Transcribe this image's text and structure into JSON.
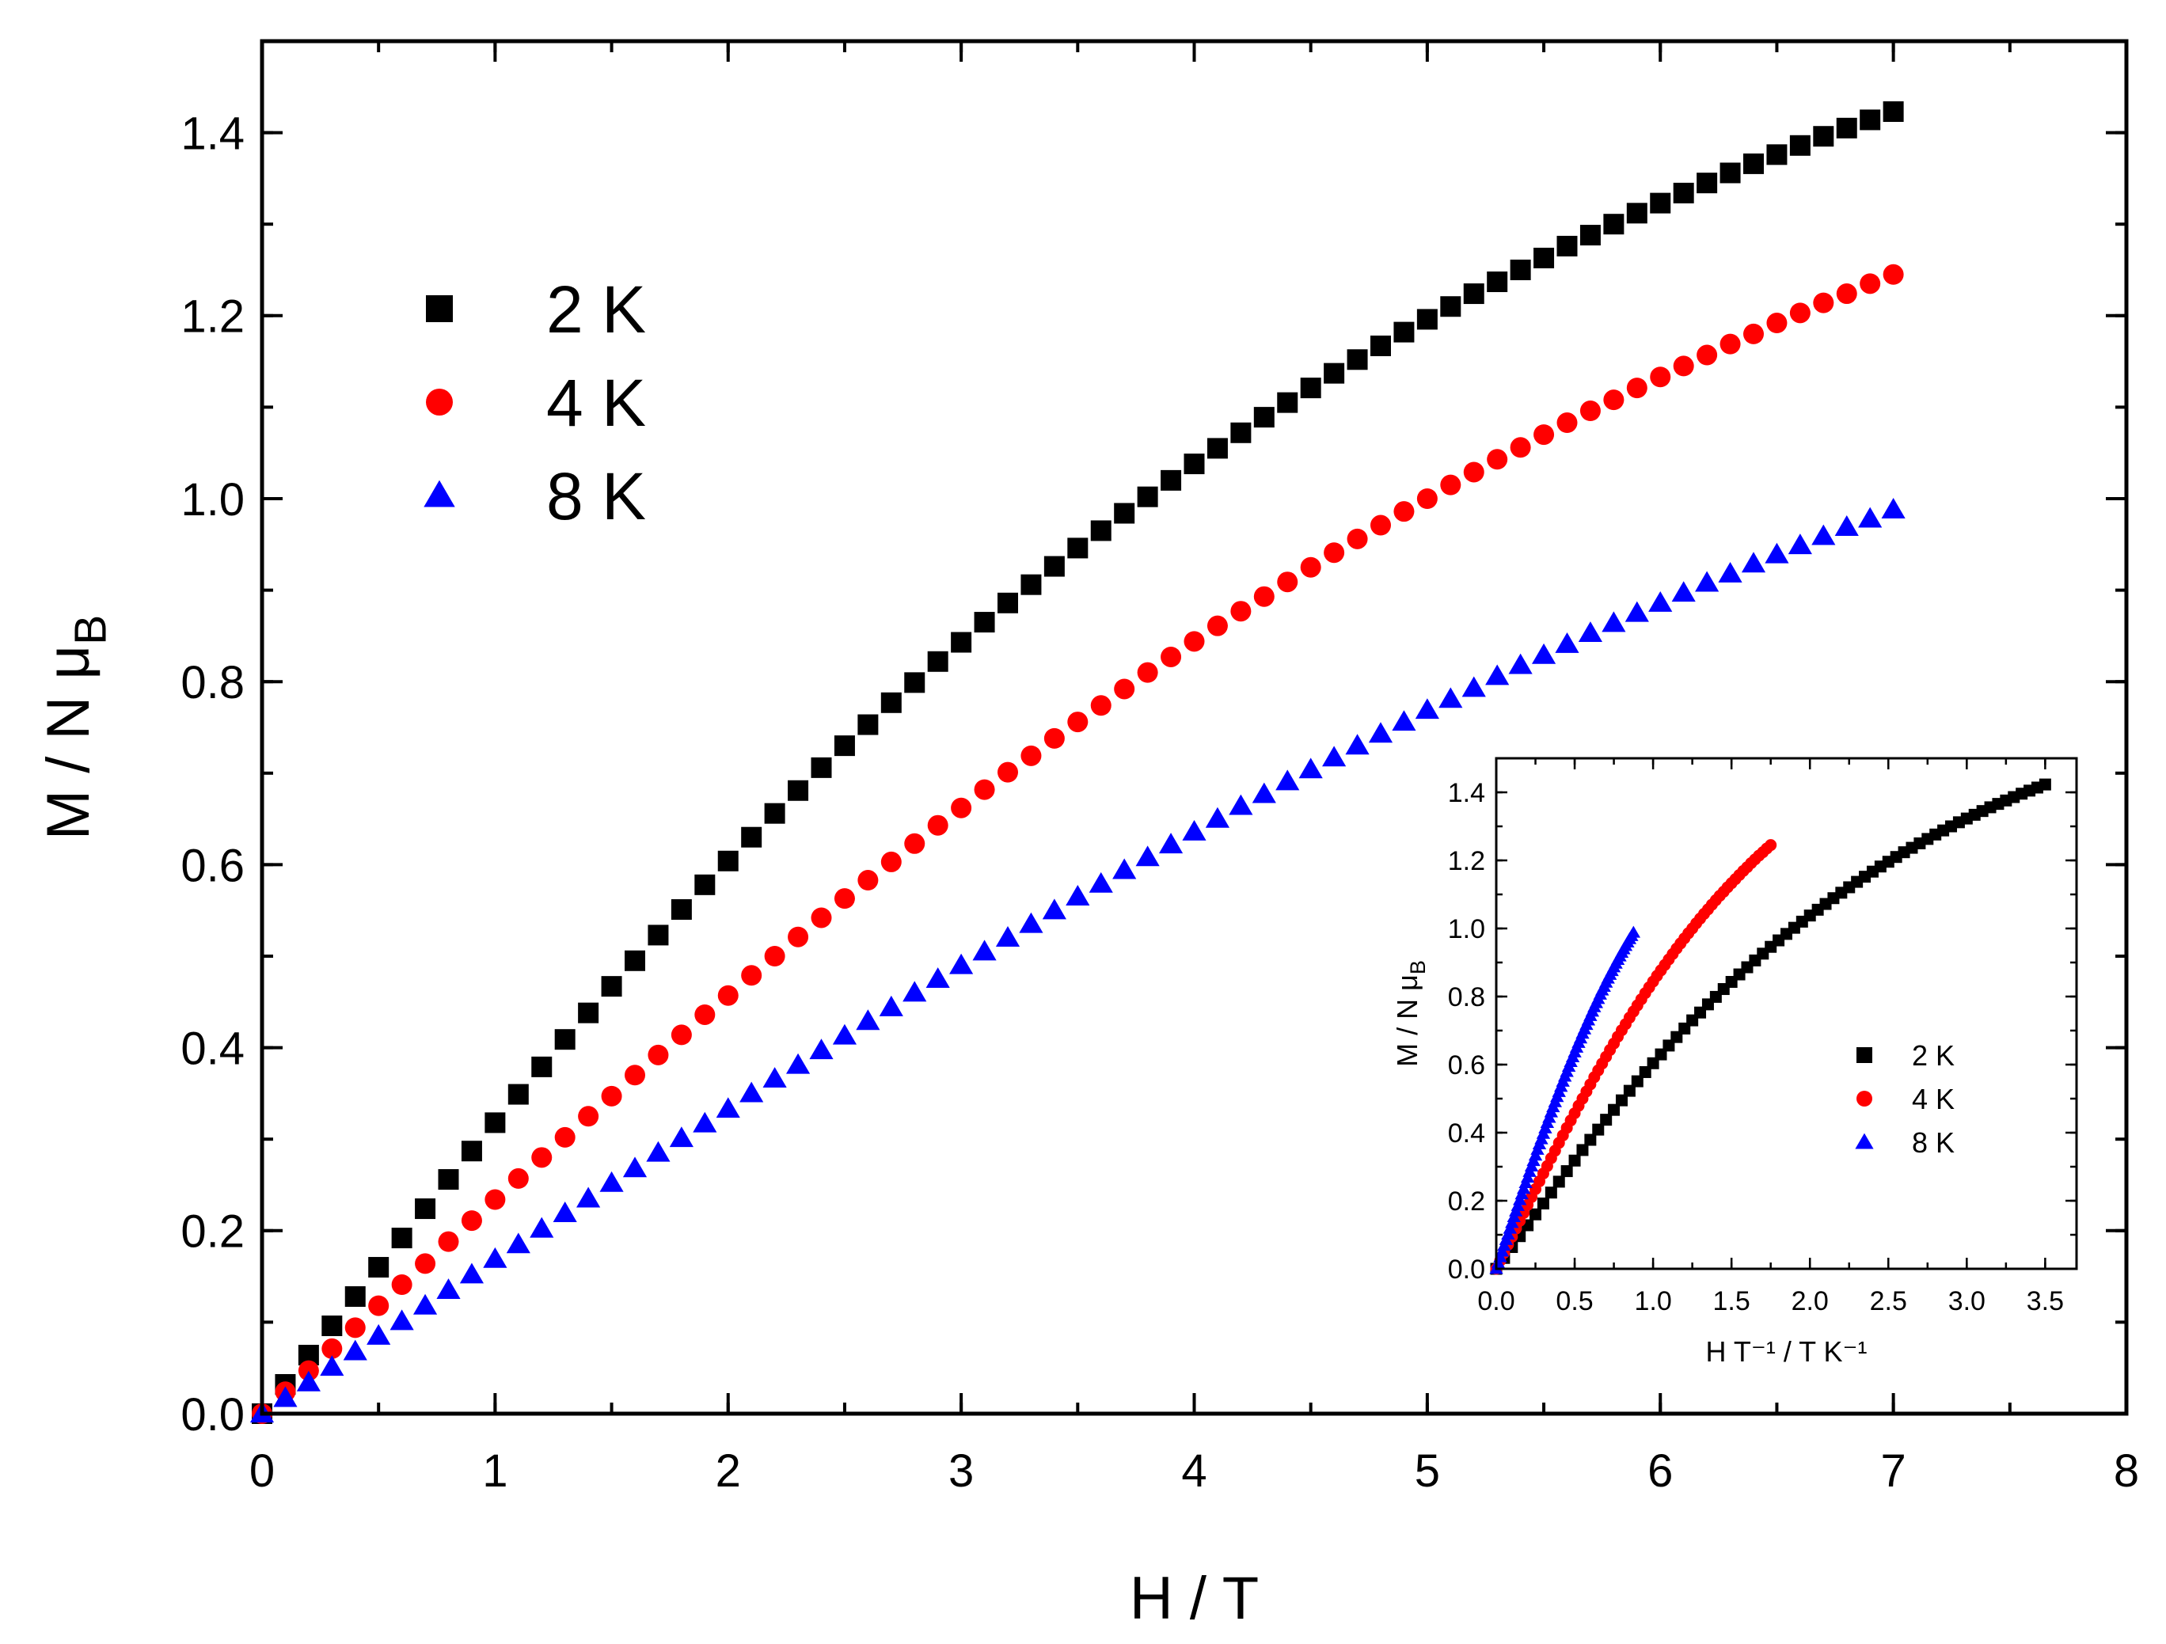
{
  "chart_data": [
    {
      "id": "main",
      "type": "scatter",
      "title": "",
      "xlabel": "H / T",
      "ylabel": "M / N μ",
      "ylabel_sub": "B",
      "xlim": [
        0,
        8
      ],
      "ylim": [
        0,
        1.5
      ],
      "xticks": [
        "0",
        "1",
        "2",
        "3",
        "4",
        "5",
        "6",
        "7",
        "8"
      ],
      "yticks": [
        "0.0",
        "0.2",
        "0.4",
        "0.6",
        "0.8",
        "1.0",
        "1.2",
        "1.4"
      ],
      "grid": false,
      "legend_position": "top-left",
      "series": [
        {
          "name": "2 K",
          "marker": "square",
          "color": "#000000",
          "x": [
            0,
            0.1,
            0.2,
            0.3,
            0.4,
            0.5,
            0.6,
            0.7,
            0.8,
            0.9,
            1.0,
            1.1,
            1.2,
            1.3,
            1.4,
            1.5,
            1.6,
            1.7,
            1.8,
            1.9,
            2.0,
            2.1,
            2.2,
            2.3,
            2.4,
            2.5,
            2.6,
            2.7,
            2.8,
            2.9,
            3.0,
            3.1,
            3.2,
            3.3,
            3.4,
            3.5,
            3.6,
            3.7,
            3.8,
            3.9,
            4.0,
            4.1,
            4.2,
            4.3,
            4.4,
            4.5,
            4.6,
            4.7,
            4.8,
            4.9,
            5.0,
            5.1,
            5.2,
            5.3,
            5.4,
            5.5,
            5.6,
            5.7,
            5.8,
            5.9,
            6.0,
            6.1,
            6.2,
            6.3,
            6.4,
            6.5,
            6.6,
            6.7,
            6.8,
            6.9,
            7.0
          ],
          "y": [
            0,
            0.032,
            0.064,
            0.096,
            0.128,
            0.16,
            0.192,
            0.224,
            0.256,
            0.287,
            0.318,
            0.349,
            0.379,
            0.409,
            0.438,
            0.467,
            0.495,
            0.523,
            0.551,
            0.578,
            0.604,
            0.63,
            0.656,
            0.681,
            0.706,
            0.73,
            0.753,
            0.777,
            0.799,
            0.822,
            0.843,
            0.865,
            0.886,
            0.906,
            0.926,
            0.946,
            0.965,
            0.984,
            1.002,
            1.02,
            1.038,
            1.055,
            1.072,
            1.089,
            1.105,
            1.121,
            1.137,
            1.152,
            1.167,
            1.182,
            1.196,
            1.21,
            1.224,
            1.237,
            1.25,
            1.263,
            1.276,
            1.288,
            1.3,
            1.312,
            1.323,
            1.334,
            1.345,
            1.356,
            1.366,
            1.376,
            1.386,
            1.396,
            1.405,
            1.414,
            1.423
          ]
        },
        {
          "name": "4 K",
          "marker": "circle",
          "color": "#ff0000",
          "x": [
            0,
            0.1,
            0.2,
            0.3,
            0.4,
            0.5,
            0.6,
            0.7,
            0.8,
            0.9,
            1.0,
            1.1,
            1.2,
            1.3,
            1.4,
            1.5,
            1.6,
            1.7,
            1.8,
            1.9,
            2.0,
            2.1,
            2.2,
            2.3,
            2.4,
            2.5,
            2.6,
            2.7,
            2.8,
            2.9,
            3.0,
            3.1,
            3.2,
            3.3,
            3.4,
            3.5,
            3.6,
            3.7,
            3.8,
            3.9,
            4.0,
            4.1,
            4.2,
            4.3,
            4.4,
            4.5,
            4.6,
            4.7,
            4.8,
            4.9,
            5.0,
            5.1,
            5.2,
            5.3,
            5.4,
            5.5,
            5.6,
            5.7,
            5.8,
            5.9,
            6.0,
            6.1,
            6.2,
            6.3,
            6.4,
            6.5,
            6.6,
            6.7,
            6.8,
            6.9,
            7.0
          ],
          "y": [
            0,
            0.024,
            0.047,
            0.071,
            0.094,
            0.118,
            0.141,
            0.164,
            0.188,
            0.211,
            0.234,
            0.257,
            0.28,
            0.302,
            0.325,
            0.347,
            0.37,
            0.392,
            0.414,
            0.436,
            0.457,
            0.479,
            0.5,
            0.521,
            0.542,
            0.563,
            0.583,
            0.603,
            0.623,
            0.643,
            0.662,
            0.682,
            0.701,
            0.719,
            0.738,
            0.756,
            0.774,
            0.792,
            0.81,
            0.827,
            0.844,
            0.861,
            0.877,
            0.893,
            0.909,
            0.925,
            0.941,
            0.956,
            0.971,
            0.986,
            1.0,
            1.015,
            1.029,
            1.043,
            1.056,
            1.07,
            1.083,
            1.096,
            1.108,
            1.121,
            1.133,
            1.145,
            1.157,
            1.169,
            1.18,
            1.192,
            1.203,
            1.214,
            1.224,
            1.235,
            1.245
          ]
        },
        {
          "name": "8 K",
          "marker": "triangle",
          "color": "#0000ff",
          "x": [
            0,
            0.1,
            0.2,
            0.3,
            0.4,
            0.5,
            0.6,
            0.7,
            0.8,
            0.9,
            1.0,
            1.1,
            1.2,
            1.3,
            1.4,
            1.5,
            1.6,
            1.7,
            1.8,
            1.9,
            2.0,
            2.1,
            2.2,
            2.3,
            2.4,
            2.5,
            2.6,
            2.7,
            2.8,
            2.9,
            3.0,
            3.1,
            3.2,
            3.3,
            3.4,
            3.5,
            3.6,
            3.7,
            3.8,
            3.9,
            4.0,
            4.1,
            4.2,
            4.3,
            4.4,
            4.5,
            4.6,
            4.7,
            4.8,
            4.9,
            5.0,
            5.1,
            5.2,
            5.3,
            5.4,
            5.5,
            5.6,
            5.7,
            5.8,
            5.9,
            6.0,
            6.1,
            6.2,
            6.3,
            6.4,
            6.5,
            6.6,
            6.7,
            6.8,
            6.9,
            7.0
          ],
          "y": [
            0,
            0.017,
            0.034,
            0.051,
            0.068,
            0.085,
            0.101,
            0.118,
            0.135,
            0.152,
            0.169,
            0.185,
            0.202,
            0.219,
            0.235,
            0.252,
            0.268,
            0.285,
            0.301,
            0.317,
            0.333,
            0.35,
            0.366,
            0.381,
            0.397,
            0.413,
            0.429,
            0.444,
            0.46,
            0.475,
            0.49,
            0.505,
            0.52,
            0.535,
            0.55,
            0.565,
            0.579,
            0.594,
            0.608,
            0.622,
            0.636,
            0.65,
            0.664,
            0.677,
            0.691,
            0.704,
            0.717,
            0.73,
            0.743,
            0.756,
            0.769,
            0.781,
            0.793,
            0.806,
            0.818,
            0.829,
            0.841,
            0.853,
            0.864,
            0.875,
            0.886,
            0.897,
            0.908,
            0.918,
            0.929,
            0.939,
            0.949,
            0.959,
            0.969,
            0.978,
            0.988
          ]
        }
      ]
    },
    {
      "id": "inset",
      "type": "scatter",
      "title": "",
      "xlabel": "H T⁻¹ / T K⁻¹",
      "ylabel": "M / N μ",
      "ylabel_sub": "B",
      "xlim": [
        0,
        3.7
      ],
      "ylim": [
        0,
        1.5
      ],
      "xticks": [
        "0.0",
        "0.5",
        "1.0",
        "1.5",
        "2.0",
        "2.5",
        "3.0",
        "3.5"
      ],
      "yticks": [
        "0.0",
        "0.2",
        "0.4",
        "0.6",
        "0.8",
        "1.0",
        "1.2",
        "1.4"
      ],
      "grid": false,
      "legend_position": "center-right",
      "x_from_main": "H/T",
      "series": [
        {
          "name": "2 K",
          "marker": "square",
          "color": "#000000",
          "temperature": 2
        },
        {
          "name": "4 K",
          "marker": "circle",
          "color": "#ff0000",
          "temperature": 4
        },
        {
          "name": "8 K",
          "marker": "triangle",
          "color": "#0000ff",
          "temperature": 8
        }
      ]
    }
  ]
}
